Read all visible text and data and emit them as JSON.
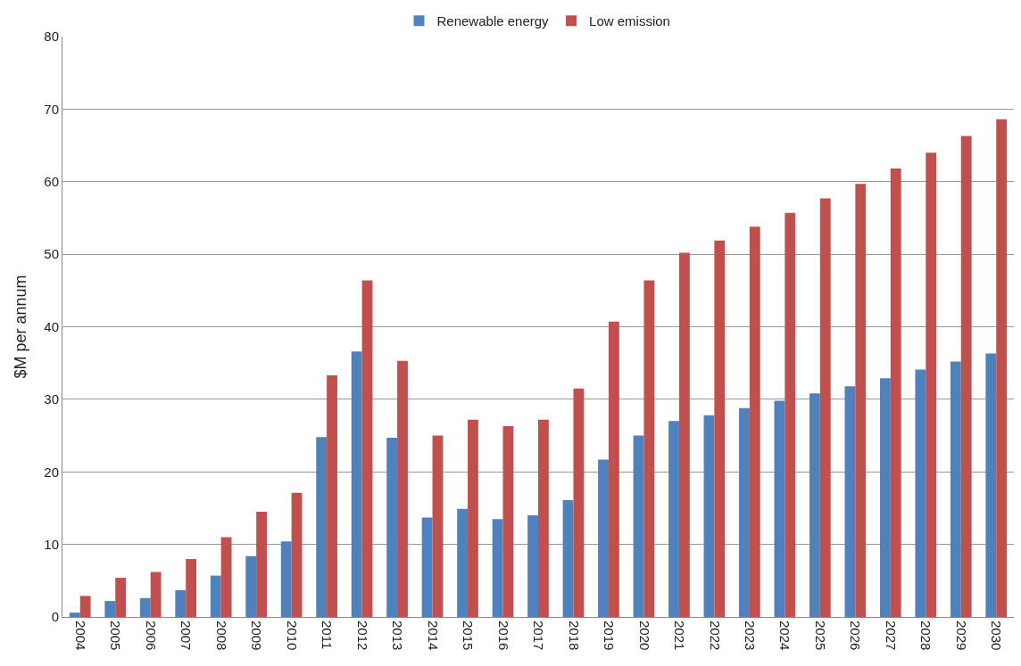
{
  "chart_data": {
    "type": "bar",
    "ylabel": "$M per annum",
    "categories": [
      "2004",
      "2005",
      "2006",
      "2007",
      "2008",
      "2009",
      "2010",
      "2011",
      "2012",
      "2013",
      "2014",
      "2015",
      "2016",
      "2017",
      "2018",
      "2019",
      "2020",
      "2021",
      "2022",
      "2023",
      "2024",
      "2025",
      "2026",
      "2027",
      "2028",
      "2029",
      "2030"
    ],
    "series": [
      {
        "name": "Renewable energy",
        "color": "#4f81bd",
        "values": [
          0.6,
          2.2,
          2.6,
          3.7,
          5.7,
          8.4,
          10.4,
          24.8,
          36.6,
          24.7,
          13.7,
          14.9,
          13.5,
          14.0,
          16.1,
          21.7,
          25.0,
          27.0,
          27.8,
          28.8,
          29.8,
          30.8,
          31.8,
          32.9,
          34.1,
          35.2,
          36.3
        ]
      },
      {
        "name": "Low emission",
        "color": "#c0504d",
        "values": [
          2.9,
          5.4,
          6.2,
          8.0,
          11.0,
          14.5,
          17.1,
          33.3,
          46.4,
          35.3,
          25.0,
          27.2,
          26.3,
          27.2,
          31.5,
          40.7,
          46.4,
          50.2,
          51.9,
          53.8,
          55.7,
          57.7,
          59.7,
          61.8,
          64.0,
          66.3,
          68.6
        ]
      }
    ],
    "ylim": [
      0,
      80
    ],
    "yticks": [
      0,
      10,
      20,
      30,
      40,
      50,
      60,
      70,
      80
    ],
    "grid": "y",
    "legend": "top"
  }
}
